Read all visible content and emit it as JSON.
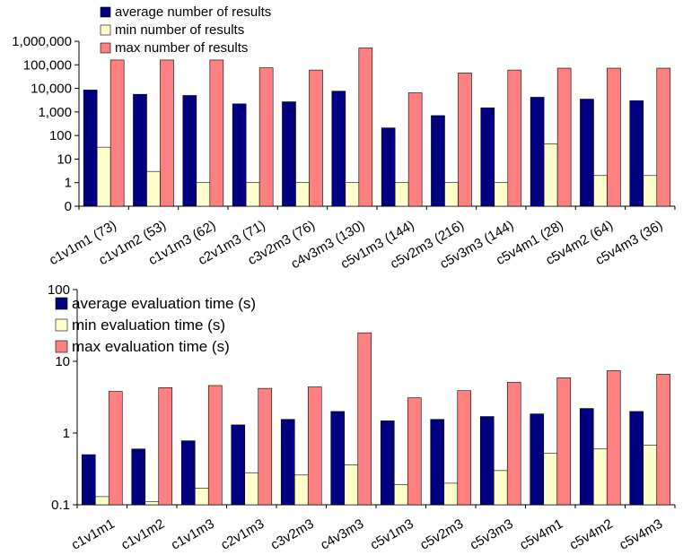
{
  "colors": {
    "average": "#000080",
    "min": "#ffffcc",
    "max": "#ff8080",
    "axis": "#000000",
    "grid": "#b3b3b3"
  },
  "chart_data": [
    {
      "type": "bar",
      "scale": "log",
      "ylim": [
        0,
        1000000
      ],
      "y_tick_labels": [
        "0",
        "1",
        "10",
        "100",
        "1,000",
        "10,000",
        "100,000",
        "1,000,000"
      ],
      "categories": [
        "c1v1m1 (73)",
        "c1v1m2 (53)",
        "c1v1m3 (62)",
        "c2v1m3 (71)",
        "c3v2m3 (76)",
        "c4v3m3 (130)",
        "c5v1m3 (144)",
        "c5v2m3 (216)",
        "c5v3m3 (144)",
        "c5v4m1 (28)",
        "c5v4m2 (64)",
        "c5v4m3 (36)"
      ],
      "legend_position": "top-left",
      "series": [
        {
          "name": "average number of results",
          "color_key": "average",
          "values": [
            8500,
            5600,
            5000,
            2200,
            2700,
            7600,
            210,
            700,
            1500,
            4200,
            3500,
            3000
          ]
        },
        {
          "name": "min number of results",
          "color_key": "min",
          "values": [
            32,
            3,
            1,
            1,
            1,
            1,
            1,
            1,
            1,
            45,
            2,
            2
          ]
        },
        {
          "name": "max number of results",
          "color_key": "max",
          "values": [
            160000,
            160000,
            160000,
            75000,
            60000,
            520000,
            6500,
            45000,
            60000,
            72000,
            72000,
            72000
          ]
        }
      ]
    },
    {
      "type": "bar",
      "scale": "log",
      "ylim": [
        0.1,
        100
      ],
      "y_tick_labels": [
        "0.1",
        "1",
        "10",
        "100"
      ],
      "categories": [
        "c1v1m1",
        "c1v1m2",
        "c1v1m3",
        "c2v1m3",
        "c3v2m3",
        "c4v3m3",
        "c5v1m3",
        "c5v2m3",
        "c5v3m3",
        "c5v4m1",
        "c5v4m2",
        "c5v4m3"
      ],
      "legend_position": "top-left",
      "series": [
        {
          "name": "average evaluation time (s)",
          "color_key": "average",
          "values": [
            0.5,
            0.6,
            0.78,
            1.3,
            1.55,
            2.0,
            1.48,
            1.55,
            1.7,
            1.85,
            2.2,
            2.0
          ]
        },
        {
          "name": "min evaluation time (s)",
          "color_key": "min",
          "values": [
            0.13,
            0.11,
            0.17,
            0.28,
            0.26,
            0.36,
            0.19,
            0.2,
            0.3,
            0.52,
            0.6,
            0.68
          ]
        },
        {
          "name": "max evaluation time (s)",
          "color_key": "max",
          "values": [
            3.8,
            4.3,
            4.6,
            4.2,
            4.4,
            25,
            3.1,
            3.9,
            5.1,
            5.9,
            7.4,
            6.6
          ]
        }
      ]
    }
  ]
}
